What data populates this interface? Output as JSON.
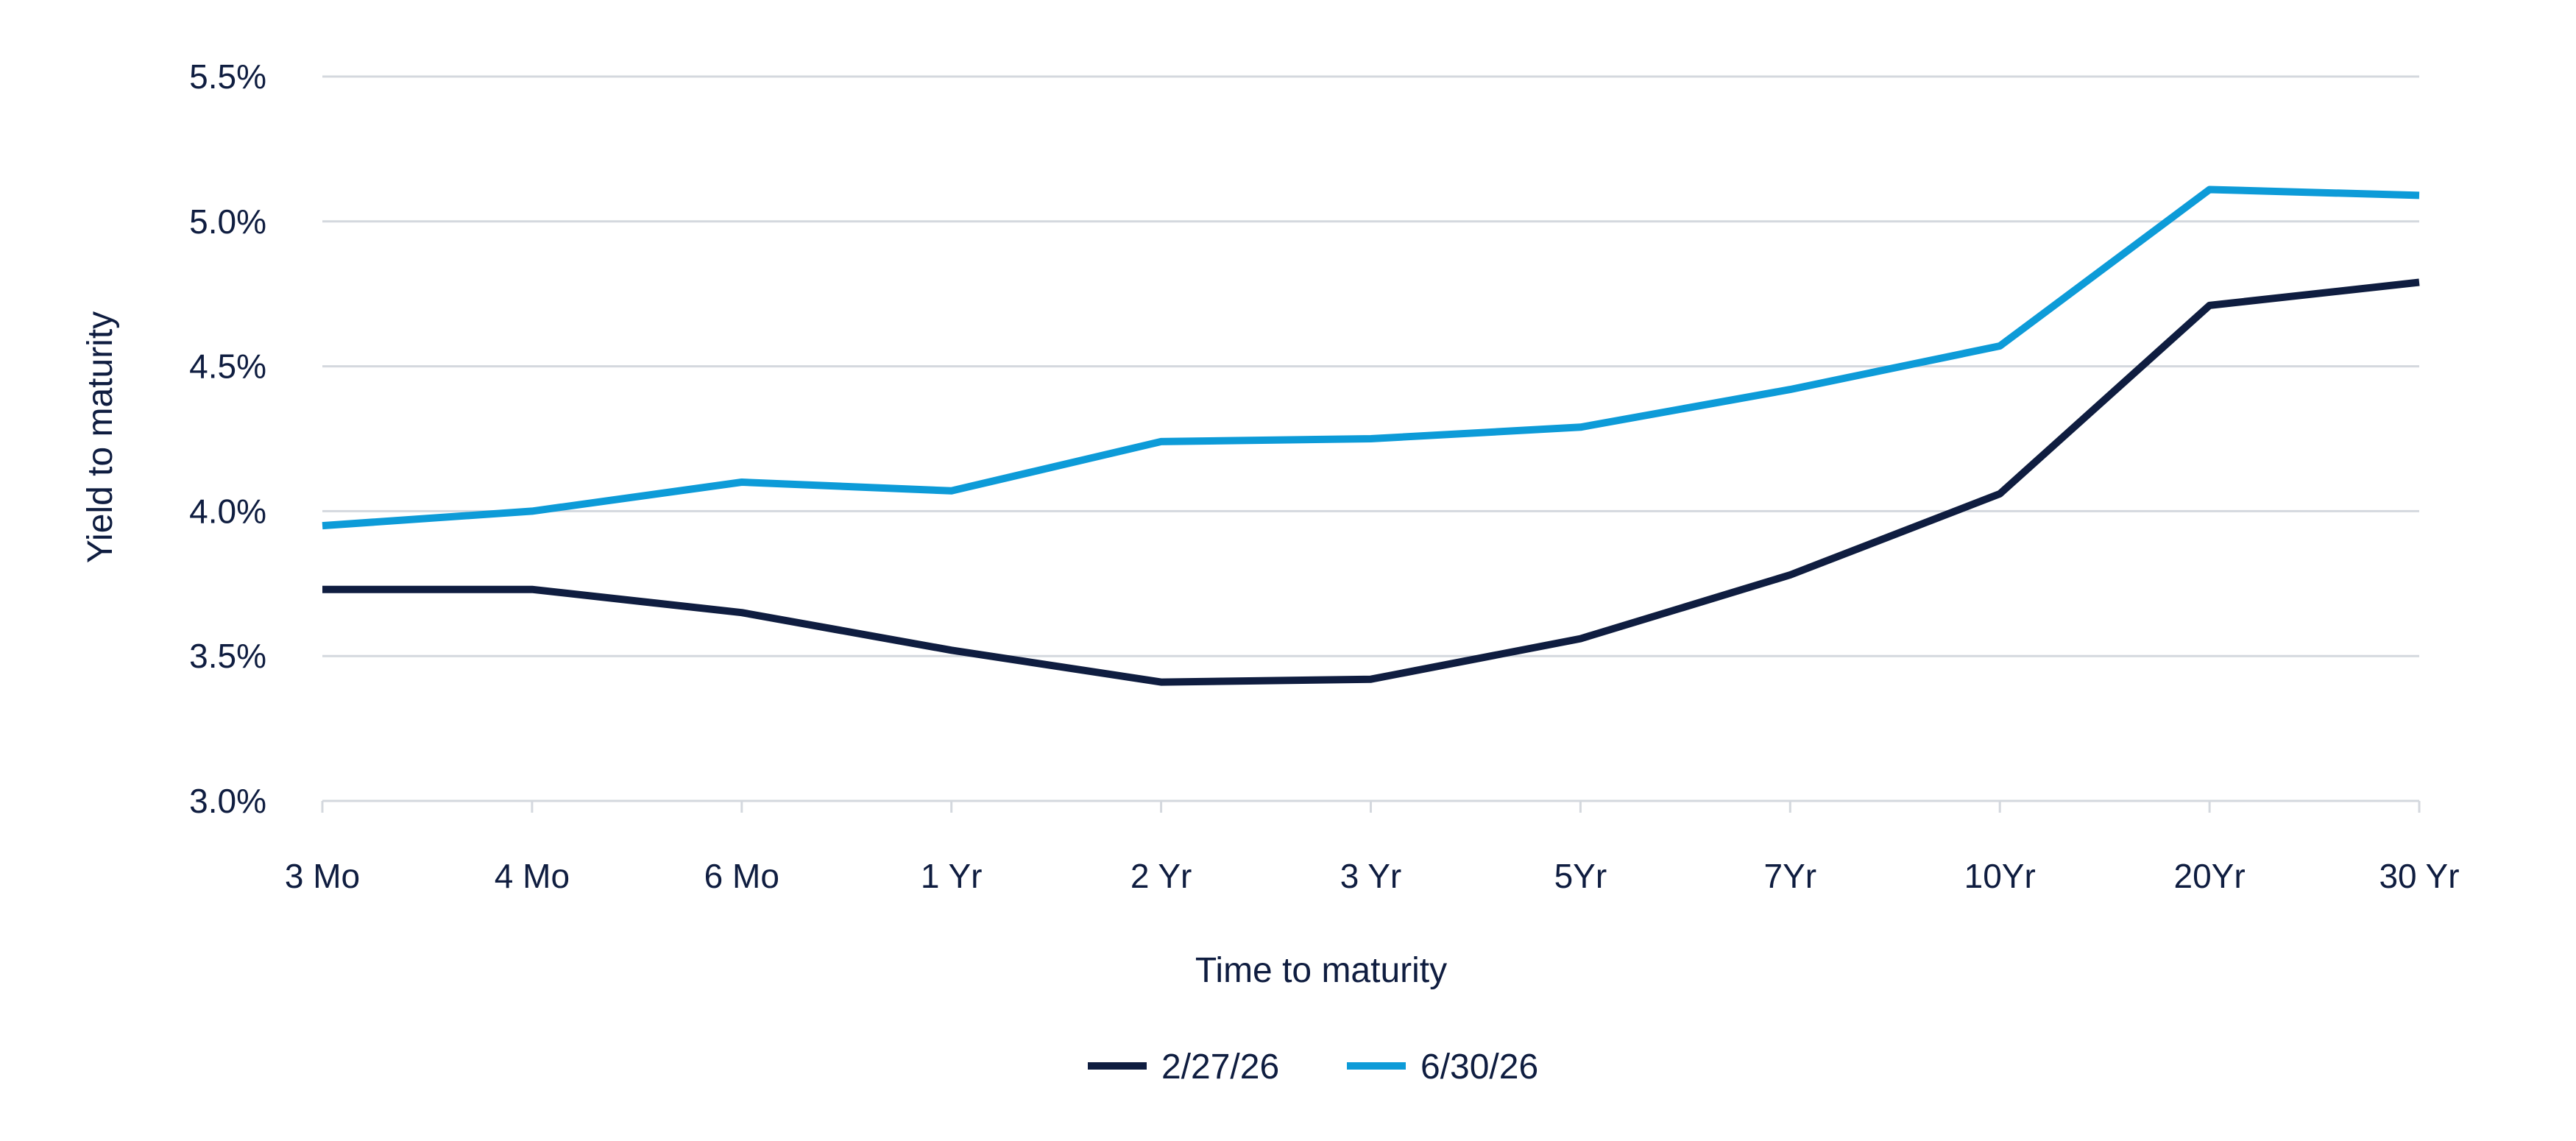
{
  "chart_data": {
    "type": "line",
    "title": "",
    "xlabel": "Time to maturity",
    "ylabel": "Yield to maturity",
    "categories": [
      "3 Mo",
      "4 Mo",
      "6 Mo",
      "1 Yr",
      "2 Yr",
      "3 Yr",
      "5Yr",
      "7Yr",
      "10Yr",
      "20Yr",
      "30 Yr"
    ],
    "y_ticks": [
      "3.0%",
      "3.5%",
      "4.0%",
      "4.5%",
      "5.0%",
      "5.5%"
    ],
    "ylim": [
      3.0,
      5.5
    ],
    "y_tick_values": [
      3.0,
      3.5,
      4.0,
      4.5,
      5.0,
      5.5
    ],
    "grid": true,
    "legend_position": "bottom-center",
    "series": [
      {
        "name": "2/27/26",
        "color": "#0f1d40",
        "values": [
          3.73,
          3.73,
          3.65,
          3.52,
          3.41,
          3.42,
          3.56,
          3.78,
          4.06,
          4.71,
          4.79
        ]
      },
      {
        "name": "6/30/26",
        "color": "#0d9bd8",
        "values": [
          3.95,
          4.0,
          4.1,
          4.07,
          4.24,
          4.25,
          4.29,
          4.42,
          4.57,
          5.11,
          5.09
        ]
      }
    ]
  }
}
